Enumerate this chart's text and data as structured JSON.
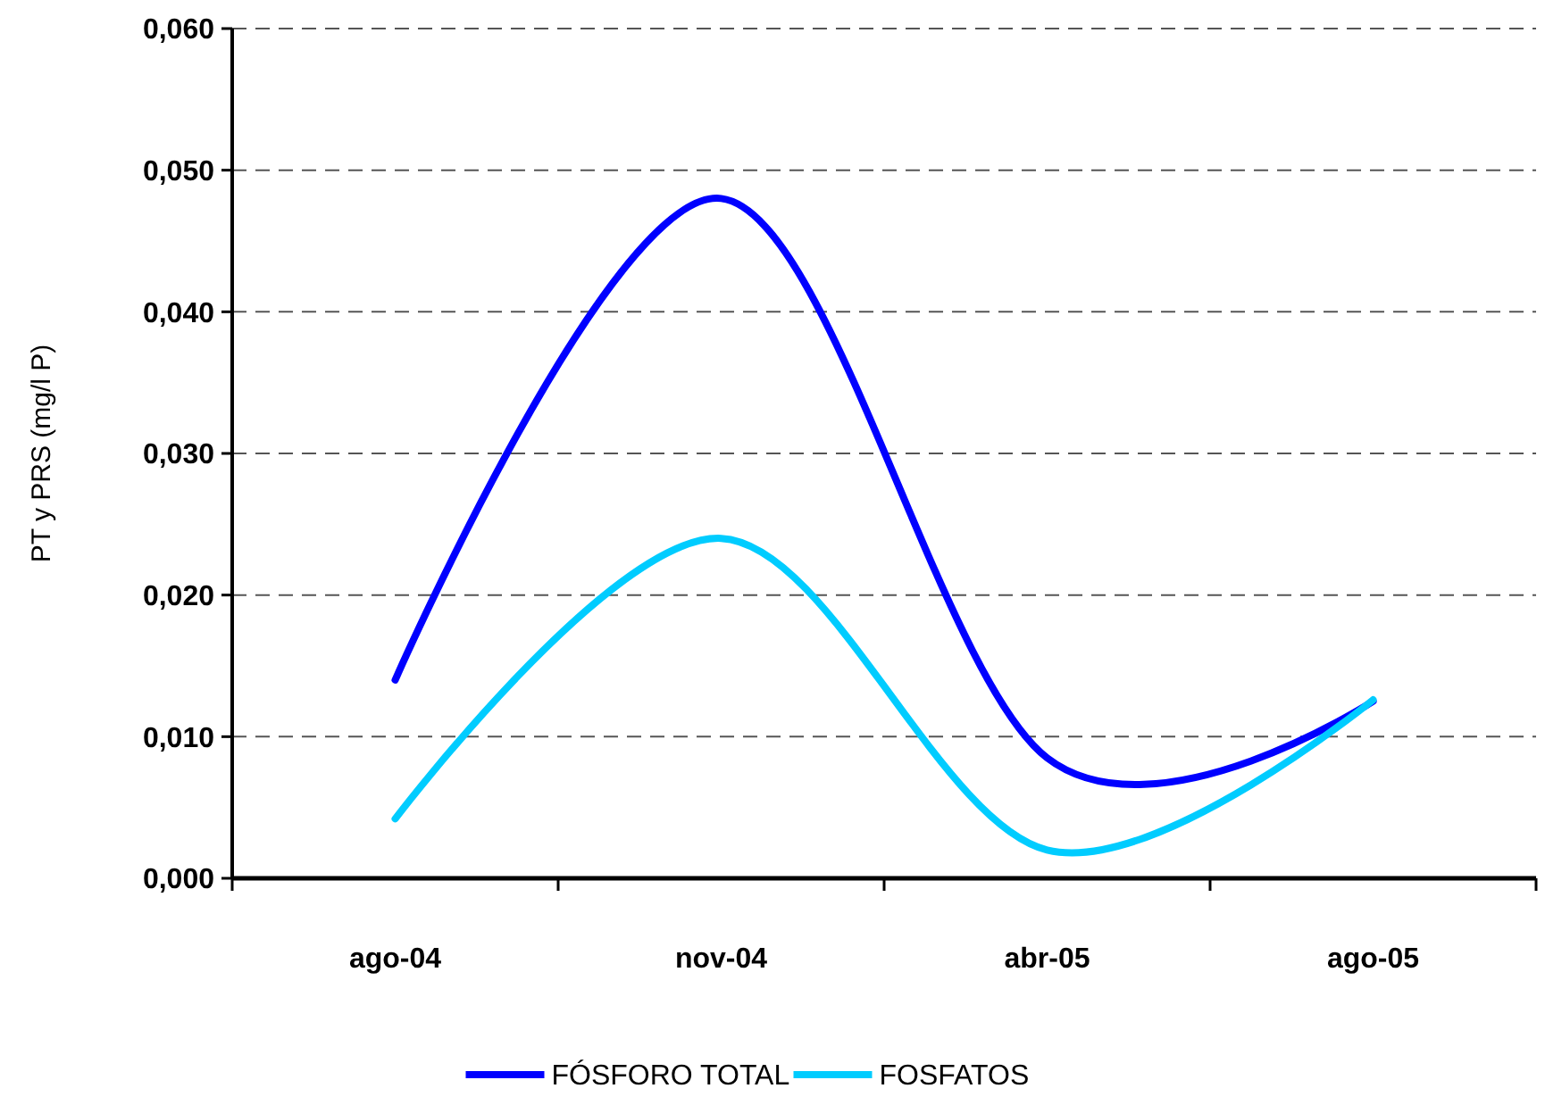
{
  "chart_data": {
    "type": "line",
    "ylabel": "PT y PRS (mg/l P)",
    "categories": [
      "ago-04",
      "nov-04",
      "abr-05",
      "ago-05"
    ],
    "series": [
      {
        "name": "FÓSFORO TOTAL",
        "color": "#0000ff",
        "values": [
          0.014,
          0.048,
          0.0085,
          0.0125
        ]
      },
      {
        "name": "FOSFATOS",
        "color": "#00ccff",
        "values": [
          0.0042,
          0.024,
          0.002,
          0.0126
        ]
      }
    ],
    "ylim": [
      0,
      0.06
    ],
    "yticks": [
      {
        "value": 0,
        "label": "0,000"
      },
      {
        "value": 0.01,
        "label": "0,010"
      },
      {
        "value": 0.02,
        "label": "0,020"
      },
      {
        "value": 0.03,
        "label": "0,030"
      },
      {
        "value": 0.04,
        "label": "0,040"
      },
      {
        "value": 0.05,
        "label": "0,050"
      },
      {
        "value": 0.06,
        "label": "0,060"
      }
    ],
    "grid": "y",
    "legend": "bottom",
    "marker": "none",
    "line_style": "solid"
  }
}
